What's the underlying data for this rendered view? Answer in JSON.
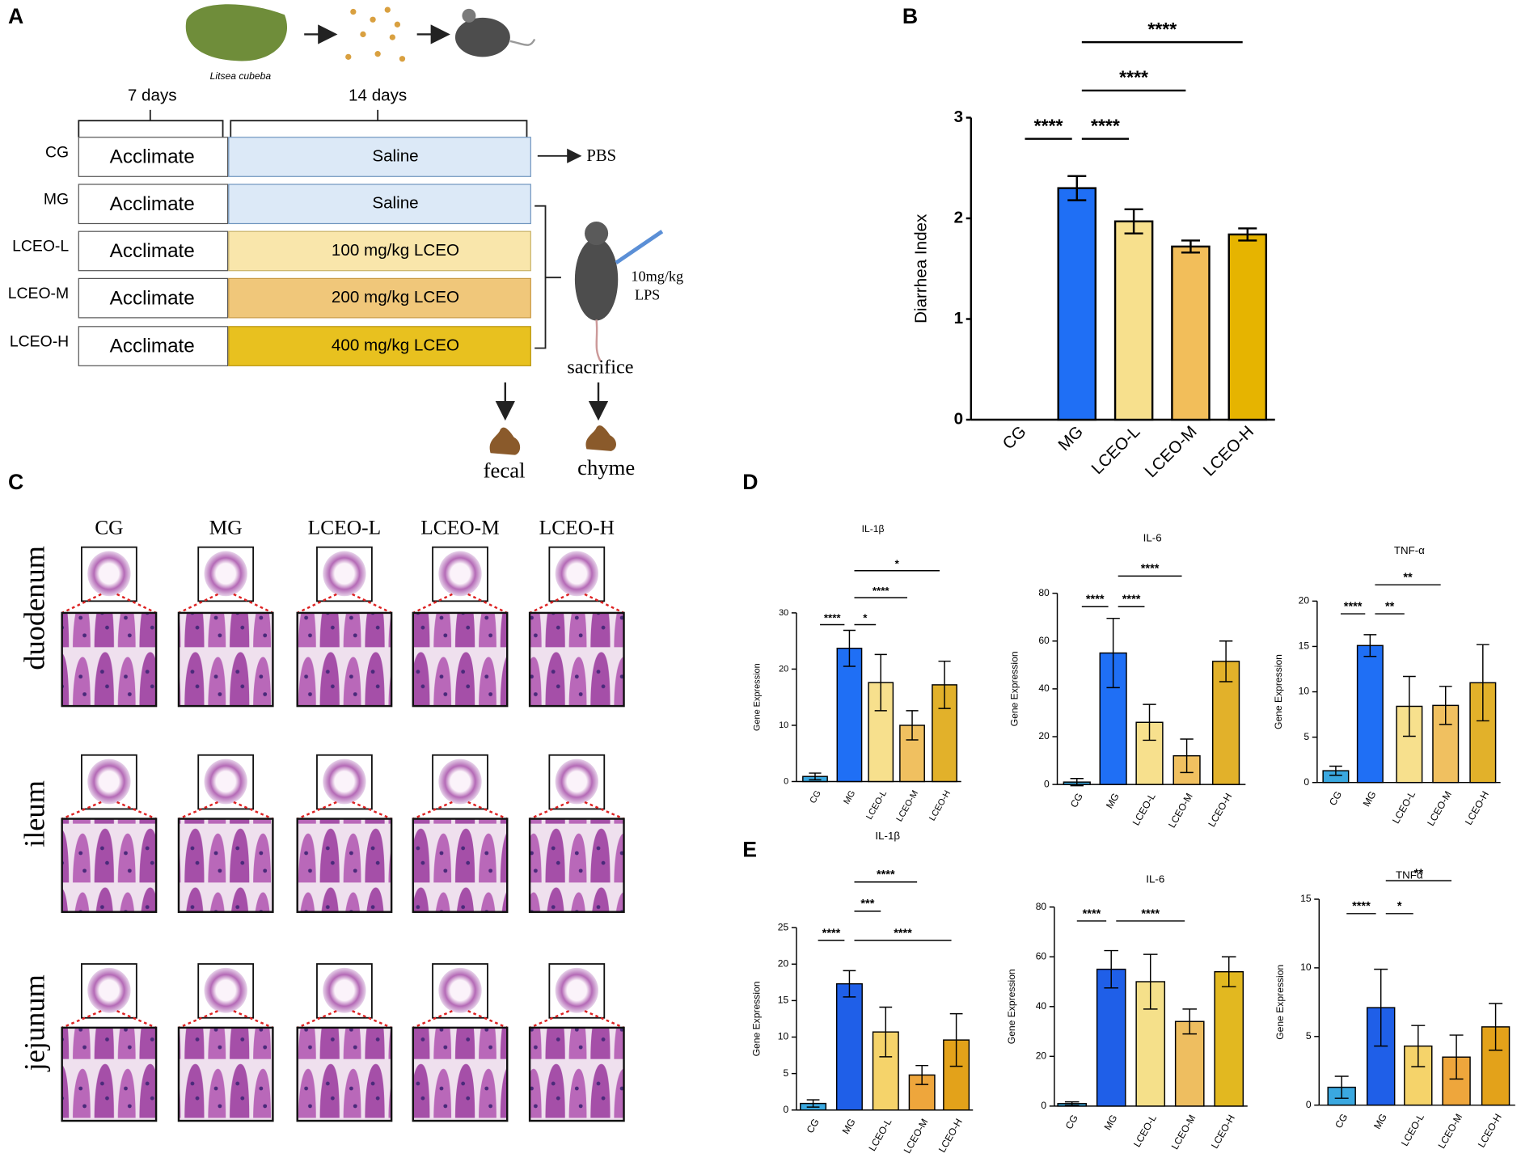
{
  "panel_labels": [
    "A",
    "B",
    "C",
    "D",
    "E"
  ],
  "panel_a": {
    "plant": "Litsea cubeba",
    "durations": [
      "7 days",
      "14 days"
    ],
    "groups": [
      {
        "name": "CG",
        "phase1": "Acclimate",
        "phase2": "Saline"
      },
      {
        "name": "MG",
        "phase1": "Acclimate",
        "phase2": "Saline"
      },
      {
        "name": "LCEO-L",
        "phase1": "Acclimate",
        "phase2": "100 mg/kg LCEO"
      },
      {
        "name": "LCEO-M",
        "phase1": "Acclimate",
        "phase2": "200 mg/kg LCEO"
      },
      {
        "name": "LCEO-H",
        "phase1": "Acclimate",
        "phase2": "400 mg/kg LCEO"
      }
    ],
    "control": "PBS",
    "injection": [
      "10mg/kg",
      "LPS"
    ],
    "end": "sacrifice",
    "samples": [
      "fecal",
      "chyme"
    ]
  },
  "panel_c": {
    "columns": [
      "CG",
      "MG",
      "LCEO-L",
      "LCEO-M",
      "LCEO-H"
    ],
    "rows": [
      "duodenum",
      "ileum",
      "jejunum"
    ]
  },
  "chart_data": [
    {
      "type": "bar",
      "ylabel": "Diarrhea Index",
      "categories": [
        "CG",
        "MG",
        "LCEO-L",
        "LCEO-M",
        "LCEO-H"
      ],
      "values": [
        0,
        2.3,
        1.97,
        1.72,
        1.84
      ],
      "errors": [
        null,
        0.12,
        0.12,
        0.06,
        0.06
      ],
      "colors": [
        "#ffffff",
        "#1f6ff5",
        "#f7e08d",
        "#f2be5a",
        "#e6b400"
      ],
      "ylim": [
        0,
        3
      ],
      "yticks": [
        0,
        1,
        2,
        3
      ],
      "significance": [
        {
          "from": "CG",
          "to": "MG",
          "label": "****"
        },
        {
          "from": "MG",
          "to": "LCEO-L",
          "label": "****"
        },
        {
          "from": "MG",
          "to": "LCEO-M",
          "label": "****"
        },
        {
          "from": "MG",
          "to": "LCEO-H",
          "label": "****"
        }
      ]
    },
    {
      "type": "bar",
      "title": "IL-1β",
      "ylabel": "Gene Expression",
      "categories": [
        "CG",
        "MG",
        "LCEO-L",
        "LCEO-M",
        "LCEO-H"
      ],
      "values": [
        0.9,
        23.7,
        17.6,
        10,
        17.2
      ],
      "errors": [
        0.6,
        3.2,
        5,
        2.6,
        4.2
      ],
      "colors": [
        "#3aa8e0",
        "#1f6ff5",
        "#f7e08d",
        "#f0c060",
        "#e2b12a"
      ],
      "ylim": [
        0,
        30
      ],
      "yticks": [
        0,
        10,
        20,
        30
      ],
      "significance": [
        {
          "from": "CG",
          "to": "MG",
          "label": "****"
        },
        {
          "from": "MG",
          "to": "LCEO-L",
          "label": "*"
        },
        {
          "from": "MG",
          "to": "LCEO-M",
          "label": "****"
        },
        {
          "from": "MG",
          "to": "LCEO-H",
          "label": "*"
        }
      ]
    },
    {
      "type": "bar",
      "title": "IL-6",
      "ylabel": "Gene Expression",
      "categories": [
        "CG",
        "MG",
        "LCEO-L",
        "LCEO-M",
        "LCEO-H"
      ],
      "values": [
        1,
        55,
        26,
        12,
        51.5
      ],
      "errors": [
        1.5,
        14.5,
        7.5,
        7,
        8.5
      ],
      "colors": [
        "#3aa8e0",
        "#1f6ff5",
        "#f7e08d",
        "#f0c060",
        "#e2b12a"
      ],
      "ylim": [
        0,
        80
      ],
      "yticks": [
        0,
        20,
        40,
        60,
        80
      ],
      "significance": [
        {
          "from": "CG",
          "to": "MG",
          "label": "****"
        },
        {
          "from": "MG",
          "to": "LCEO-L",
          "label": "****"
        },
        {
          "from": "MG",
          "to": "LCEO-M",
          "label": "****"
        }
      ]
    },
    {
      "type": "bar",
      "title": "TNF-α",
      "ylabel": "Gene Expression",
      "categories": [
        "CG",
        "MG",
        "LCEO-L",
        "LCEO-M",
        "LCEO-H"
      ],
      "values": [
        1.3,
        15.1,
        8.4,
        8.5,
        11
      ],
      "errors": [
        0.5,
        1.2,
        3.3,
        2.1,
        4.2
      ],
      "colors": [
        "#3aa8e0",
        "#1f6ff5",
        "#f7e08d",
        "#f0c060",
        "#e2b12a"
      ],
      "ylim": [
        0,
        20
      ],
      "yticks": [
        0,
        5,
        10,
        15,
        20
      ],
      "significance": [
        {
          "from": "CG",
          "to": "MG",
          "label": "****"
        },
        {
          "from": "MG",
          "to": "LCEO-L",
          "label": "**"
        },
        {
          "from": "MG",
          "to": "LCEO-M",
          "label": "**"
        }
      ]
    },
    {
      "type": "bar",
      "title": "IL-1β",
      "ylabel": "Gene Expression",
      "categories": [
        "CG",
        "MG",
        "LCEO-L",
        "LCEO-M",
        "LCEO-H"
      ],
      "values": [
        0.9,
        17.3,
        10.7,
        4.8,
        9.6
      ],
      "errors": [
        0.5,
        1.8,
        3.4,
        1.3,
        3.6
      ],
      "colors": [
        "#3aa8e0",
        "#1f5fe8",
        "#f5d36a",
        "#eea63c",
        "#e3a21a"
      ],
      "ylim": [
        0,
        25
      ],
      "yticks": [
        0,
        5,
        10,
        15,
        20,
        25
      ],
      "significance": [
        {
          "from": "CG",
          "to": "MG",
          "label": "****"
        },
        {
          "from": "MG",
          "to": "LCEO-H",
          "label": "****"
        },
        {
          "from": "MG",
          "to": "LCEO-L",
          "label": "***"
        },
        {
          "from": "MG",
          "to": "LCEO-M",
          "label": "****"
        }
      ]
    },
    {
      "type": "bar",
      "title": "IL-6",
      "ylabel": "Gene Expression",
      "categories": [
        "CG",
        "MG",
        "LCEO-L",
        "LCEO-M",
        "LCEO-H"
      ],
      "values": [
        1,
        55,
        50,
        34,
        54
      ],
      "errors": [
        0.7,
        7.5,
        11,
        5,
        6
      ],
      "colors": [
        "#3aa8e0",
        "#1f5fe8",
        "#f5e08a",
        "#eebe60",
        "#e2b820"
      ],
      "ylim": [
        0,
        80
      ],
      "yticks": [
        0,
        20,
        40,
        60,
        80
      ],
      "significance": [
        {
          "from": "CG",
          "to": "MG",
          "label": "****"
        },
        {
          "from": "MG",
          "to": "LCEO-M",
          "label": "****"
        }
      ]
    },
    {
      "type": "bar",
      "title": "TNFα",
      "ylabel": "Gene Expression",
      "categories": [
        "CG",
        "MG",
        "LCEO-L",
        "LCEO-M",
        "LCEO-H"
      ],
      "values": [
        1.3,
        7.1,
        4.3,
        3.5,
        5.7
      ],
      "errors": [
        0.8,
        2.8,
        1.5,
        1.6,
        1.7
      ],
      "colors": [
        "#3aa8e0",
        "#1f5fe8",
        "#f5d36a",
        "#eea63c",
        "#e3a21a"
      ],
      "ylim": [
        0,
        15
      ],
      "yticks": [
        0,
        5,
        10,
        15
      ],
      "significance": [
        {
          "from": "CG",
          "to": "MG",
          "label": "****"
        },
        {
          "from": "MG",
          "to": "LCEO-L",
          "label": "*"
        },
        {
          "from": "MG",
          "to": "LCEO-M",
          "label": "**"
        }
      ]
    }
  ]
}
